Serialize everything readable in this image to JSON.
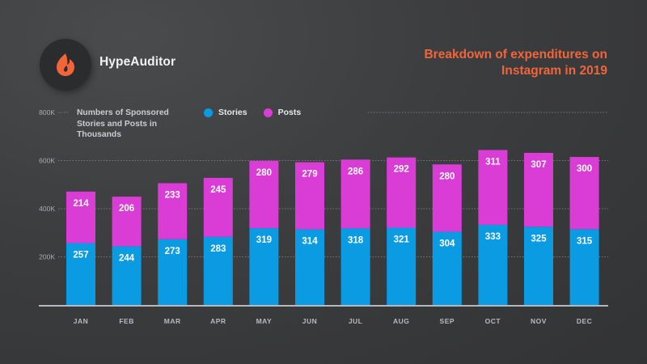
{
  "brand": {
    "name": "HypeAuditor",
    "logo_icon": "flame-icon",
    "accent": "#f2643a"
  },
  "header": {
    "title_line1": "Breakdown of expenditures on",
    "title_line2": "Instagram in 2019"
  },
  "chart_data": {
    "type": "bar",
    "stacked": true,
    "title": "Breakdown of expenditures on Instagram in 2019",
    "subtitle": "Numbers of Sponsored Stories and Posts in Thousands",
    "xlabel": "",
    "ylabel": "",
    "categories": [
      "JAN",
      "FEB",
      "MAR",
      "APR",
      "MAY",
      "JUN",
      "JUL",
      "AUG",
      "SEP",
      "OCT",
      "NOV",
      "DEC"
    ],
    "series": [
      {
        "name": "Stories",
        "color": "#0a9be3",
        "values": [
          257,
          244,
          273,
          283,
          319,
          314,
          318,
          321,
          304,
          333,
          325,
          315
        ]
      },
      {
        "name": "Posts",
        "color": "#d93dd6",
        "values": [
          214,
          206,
          233,
          245,
          280,
          279,
          286,
          292,
          280,
          311,
          307,
          300
        ]
      }
    ],
    "ylim": [
      0,
      800
    ],
    "yticks": [
      200,
      400,
      600,
      800
    ],
    "ytick_labels": [
      "200K",
      "400K",
      "600K",
      "800K"
    ],
    "grid": true,
    "legend": "top-center"
  }
}
